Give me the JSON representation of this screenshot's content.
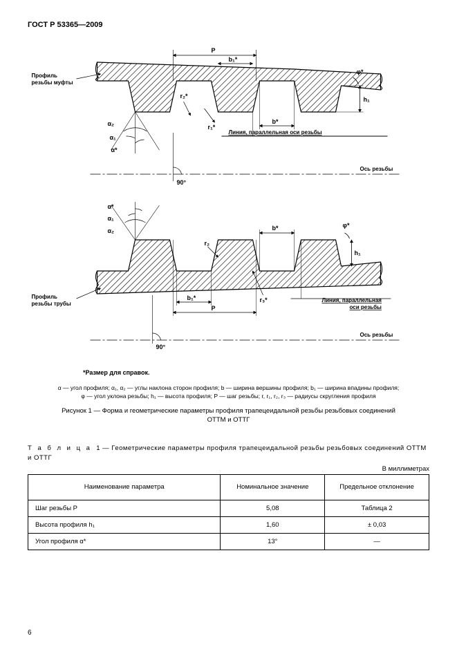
{
  "header": "ГОСТ Р 53365—2009",
  "figure": {
    "label_top": "Профиль\nрезьбы муфты",
    "label_bottom": "Профиль\nрезьбы трубы",
    "label_parallel": "Линия, параллельная оси резьбы",
    "label_parallel2": "Линия, параллельная\nоси резьбы",
    "label_axis": "Ось резьбы",
    "sym_P": "P",
    "sym_b1": "b₁*",
    "sym_b": "b*",
    "sym_h1": "h₁",
    "sym_phi": "φ*",
    "sym_r1": "r₁*",
    "sym_r2": "r₂*",
    "sym_r3": "r₃*",
    "sym_alpha": "α*",
    "sym_alpha1": "α₁",
    "sym_alpha2": "α₂",
    "sym_90": "90°",
    "hatch_angle": 45,
    "line_color": "#000000"
  },
  "note": "*Размер для справок.",
  "legend": "α — угол профиля; α₁, α₂ — углы наклона сторон профиля; b — ширина вершины профиля; b₁ — ширина впадины профиля;\nφ — угол уклона резьбы; h₁ — высота профиля; P — шаг резьбы; r, r₁, r₂, r₃ — радиусы скругления профиля",
  "fig_caption": "Рисунок 1 — Форма и геометрические параметры профиля трапецеидальной резьбы резьбовых соединений\nОТТМ и ОТТГ",
  "table_caption_prefix": "Т а б л и ц а",
  "table_caption_num": "1",
  "table_caption_text": "— Геометрические параметры профиля трапецеидальной резьбы резьбовых соединений ОТТМ и ОТТГ",
  "units": "В миллиметрах",
  "table": {
    "columns": [
      "Наименование параметра",
      "Номинальное значение",
      "Предельное отклонение"
    ],
    "col_widths": [
      "48%",
      "26%",
      "26%"
    ],
    "rows": [
      {
        "name": "Шаг резьбы P",
        "nominal": "5,08",
        "tol": "Таблица 2"
      },
      {
        "name": "Высота профиля h₁",
        "nominal": "1,60",
        "tol": "± 0,03"
      },
      {
        "name": "Угол профиля  α*",
        "nominal": "13°",
        "tol": "—"
      }
    ]
  },
  "page_num": "6"
}
